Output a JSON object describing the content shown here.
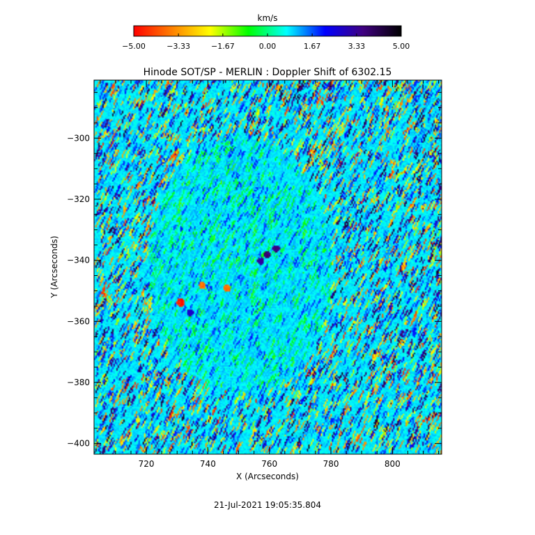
{
  "chart_data": {
    "type": "heatmap",
    "title": "Hinode SOT/SP - MERLIN : Doppler Shift of 6302.15",
    "xlabel": "X (Arcseconds)",
    "ylabel": "Y (Arcseconds)",
    "timestamp": "21-Jul-2021 19:05:35.804",
    "x_range": [
      703,
      816
    ],
    "y_range": [
      -403.5,
      -281
    ],
    "x_ticks": [
      720,
      740,
      760,
      780,
      800
    ],
    "y_ticks": [
      -300,
      -320,
      -340,
      -360,
      -380,
      -400
    ],
    "x_tick_labels": [
      "720",
      "740",
      "760",
      "780",
      "800"
    ],
    "y_tick_labels": [
      "−300",
      "−320",
      "−340",
      "−360",
      "−380",
      "−400"
    ],
    "colorbar": {
      "label": "km/s",
      "range": [
        -5.0,
        5.0
      ],
      "ticks": [
        -5.0,
        -3.33,
        -1.67,
        0.0,
        1.67,
        3.33,
        5.0
      ],
      "tick_labels": [
        "−5.00",
        "−3.33",
        "−1.67",
        "0.00",
        "1.67",
        "3.33",
        "5.00"
      ],
      "colors": [
        "#ff0000",
        "#ff8000",
        "#ffff00",
        "#00ff00",
        "#00ffff",
        "#0000ff",
        "#400080",
        "#000000"
      ]
    },
    "features": [
      {
        "x": 731,
        "y": -353.5,
        "value": -5.0
      },
      {
        "x": 738,
        "y": -348,
        "value": -4.0
      },
      {
        "x": 746,
        "y": -349,
        "value": -4.0
      },
      {
        "x": 759,
        "y": -338,
        "value": 4.0
      },
      {
        "x": 762,
        "y": -336,
        "value": 3.8
      },
      {
        "x": 757,
        "y": -340,
        "value": 3.5
      },
      {
        "x": 734,
        "y": -357,
        "value": 3.0
      }
    ],
    "background_value": 0.8,
    "quiet_region": {
      "x": [
        720,
        780
      ],
      "y": [
        -385,
        -300
      ]
    }
  }
}
